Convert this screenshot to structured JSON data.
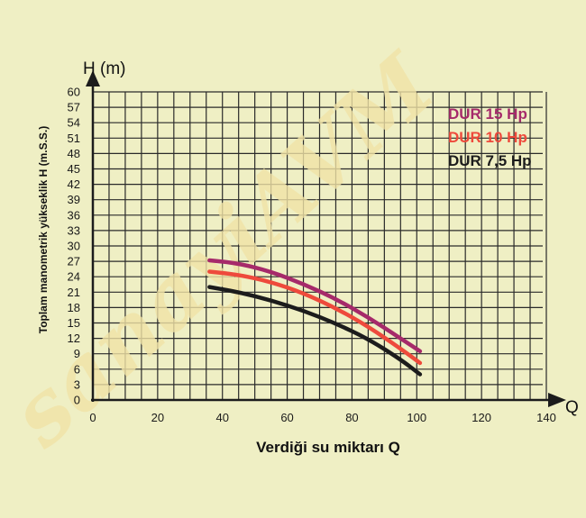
{
  "chart_data": {
    "type": "line",
    "xlabel": "Verdiği su miktarı Q",
    "x_axis_symbol": "Q",
    "ylabel": "Toplam manometrik yükseklik H (m.S.S.)",
    "y_axis_symbol": "H (m)",
    "xlim": [
      0,
      140
    ],
    "ylim": [
      0,
      60
    ],
    "x_ticks": [
      0,
      20,
      40,
      60,
      80,
      100,
      120,
      140
    ],
    "y_ticks": [
      0,
      3,
      6,
      9,
      12,
      15,
      18,
      21,
      24,
      27,
      30,
      33,
      36,
      39,
      42,
      45,
      48,
      51,
      54,
      57,
      60
    ],
    "grid": true,
    "legend_position": "top-right",
    "series": [
      {
        "name": "DUR 15 Hp",
        "color": "#a62a6a",
        "x": [
          36,
          45,
          55,
          65,
          75,
          85,
          95,
          101
        ],
        "y": [
          27.2,
          26.6,
          25.0,
          22.6,
          19.7,
          16.1,
          12.0,
          9.5
        ]
      },
      {
        "name": "DUR 10 Hp",
        "color": "#ee4a3c",
        "x": [
          36,
          45,
          55,
          65,
          75,
          85,
          95,
          101
        ],
        "y": [
          25.0,
          24.4,
          23.0,
          20.8,
          17.9,
          14.3,
          10.0,
          7.2
        ]
      },
      {
        "name": "DUR 7,5 Hp",
        "color": "#1c1c1c",
        "x": [
          36,
          45,
          55,
          65,
          75,
          85,
          95,
          101
        ],
        "y": [
          22.0,
          21.0,
          19.4,
          17.4,
          14.9,
          11.9,
          7.9,
          5.0
        ]
      }
    ]
  },
  "watermark": "sanayiAVM"
}
